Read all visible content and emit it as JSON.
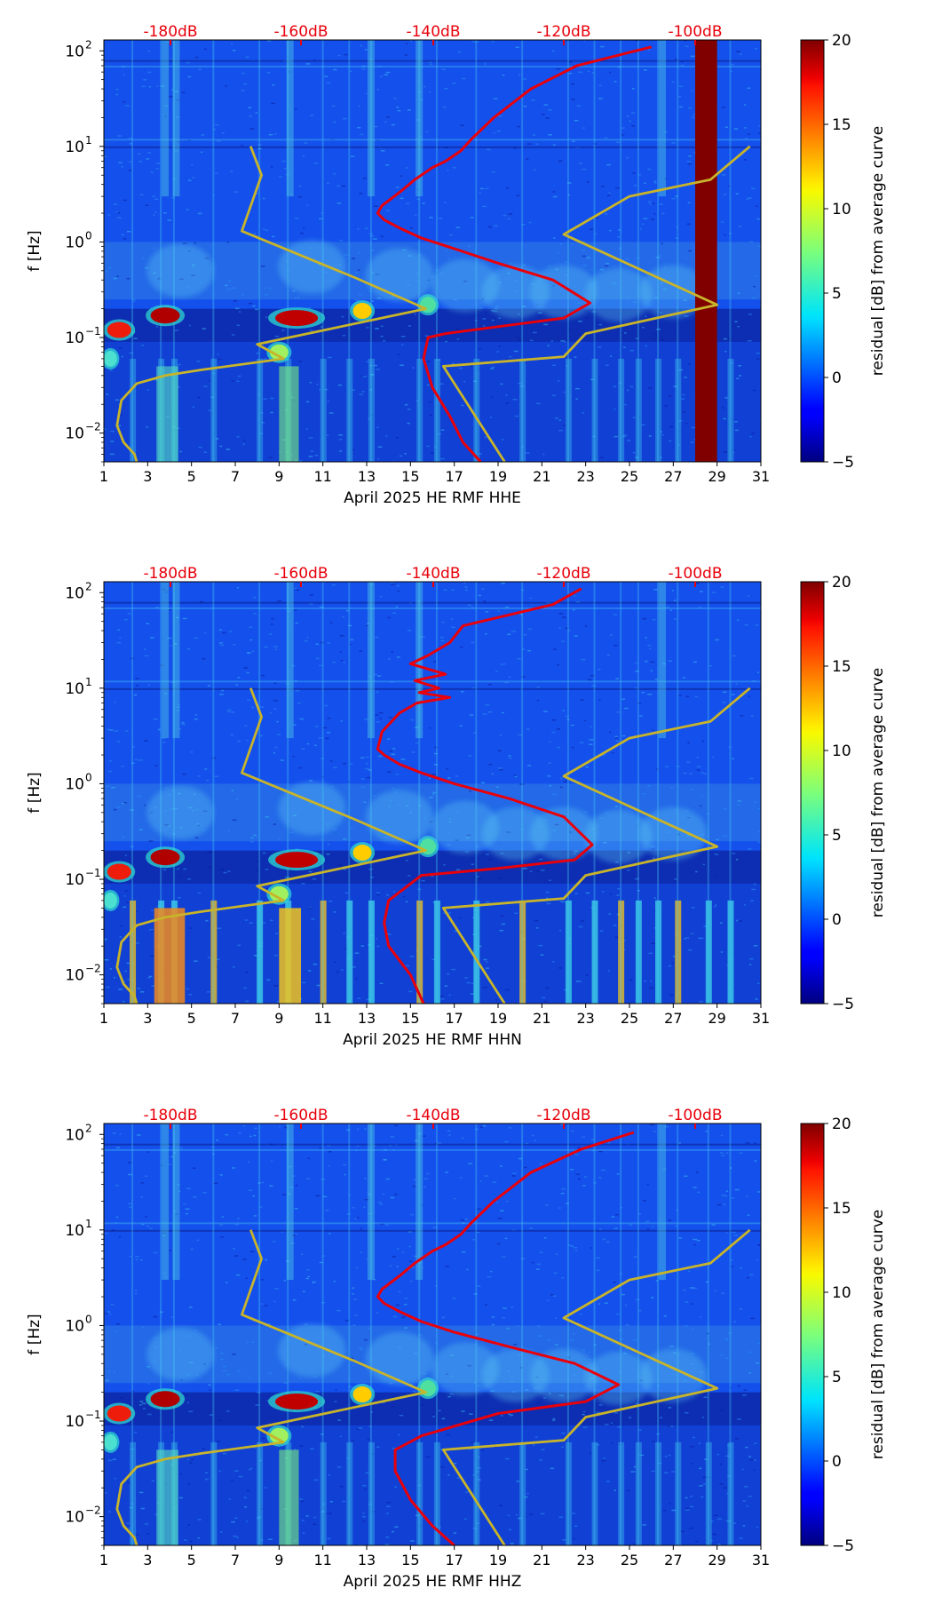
{
  "chart_data": [
    {
      "type": "heatmap",
      "title": "",
      "xlabel": "April 2025 HE RMF  HHE",
      "ylabel": "f [Hz]",
      "x_ticks": [
        "1",
        "3",
        "5",
        "7",
        "9",
        "11",
        "13",
        "15",
        "17",
        "19",
        "21",
        "23",
        "25",
        "27",
        "29",
        "31"
      ],
      "x_range": [
        1,
        31
      ],
      "y_ticks": [
        "10^-2",
        "10^-1",
        "10^0",
        "10^1",
        "10^2"
      ],
      "y_range": [
        0.005,
        130
      ],
      "y_scale": "log",
      "top_axis_ticks": [
        "-180dB",
        "-160dB",
        "-140dB",
        "-120dB",
        "-100dB"
      ],
      "top_axis_color": "#e8000b",
      "colorbar": {
        "label": "residual [dB] from average curve",
        "ticks": [
          "-5",
          "0",
          "5",
          "10",
          "15",
          "20"
        ],
        "range": [
          -5,
          20
        ],
        "colormap": "jet"
      },
      "highlight_bands": [
        {
          "x0": 28.0,
          "x1": 29.0,
          "color": "#800000"
        }
      ],
      "series": [
        {
          "color": "#e8000b",
          "x": [
            26.0,
            22.6,
            20.5,
            18.8,
            17.8,
            17.3,
            16.6,
            16.0,
            15.2,
            14.5,
            13.7,
            13.5,
            13.8,
            14.5,
            15.5,
            17.0,
            19.0,
            21.5,
            23.2,
            22.0,
            19.0,
            16.6,
            15.8,
            15.6,
            16.0,
            16.8,
            17.4,
            18.2
          ],
          "y": [
            110,
            70,
            40,
            20,
            12,
            9,
            7,
            6,
            4.5,
            3.3,
            2.4,
            2.0,
            1.7,
            1.4,
            1.1,
            0.85,
            0.6,
            0.4,
            0.23,
            0.16,
            0.13,
            0.11,
            0.1,
            0.06,
            0.03,
            0.015,
            0.008,
            0.005
          ]
        },
        {
          "color": "#c8b42a",
          "x": [
            7.7,
            8.2,
            7.3,
            12.5,
            15.7,
            8.0,
            9.2,
            5.5,
            3.8,
            2.5,
            1.8,
            1.6,
            1.9,
            2.4,
            2.5
          ],
          "y": [
            10,
            5.0,
            1.3,
            0.42,
            0.2,
            0.085,
            0.06,
            0.046,
            0.04,
            0.033,
            0.022,
            0.012,
            0.008,
            0.006,
            0.005
          ]
        },
        {
          "color": "#c8b42a",
          "x": [
            30.5,
            28.7,
            25.0,
            22.0,
            29.0,
            23.0,
            22.0,
            16.5,
            19.3
          ],
          "y": [
            10,
            4.5,
            3.0,
            1.2,
            0.22,
            0.11,
            0.063,
            0.05,
            0.005
          ]
        }
      ]
    },
    {
      "type": "heatmap",
      "title": "",
      "xlabel": "April 2025 HE RMF  HHN",
      "ylabel": "f [Hz]",
      "x_ticks": [
        "1",
        "3",
        "5",
        "7",
        "9",
        "11",
        "13",
        "15",
        "17",
        "19",
        "21",
        "23",
        "25",
        "27",
        "29",
        "31"
      ],
      "x_range": [
        1,
        31
      ],
      "y_ticks": [
        "10^-2",
        "10^-1",
        "10^0",
        "10^1",
        "10^2"
      ],
      "y_range": [
        0.005,
        130
      ],
      "y_scale": "log",
      "top_axis_ticks": [
        "-180dB",
        "-160dB",
        "-140dB",
        "-120dB",
        "-100dB"
      ],
      "top_axis_color": "#e8000b",
      "colorbar": {
        "label": "residual [dB] from average curve",
        "ticks": [
          "-5",
          "0",
          "5",
          "10",
          "15",
          "20"
        ],
        "range": [
          -5,
          20
        ],
        "colormap": "jet"
      },
      "highlight_bands": [],
      "series": [
        {
          "color": "#e8000b",
          "x": [
            22.8,
            21.5,
            17.4,
            16.8,
            15.8,
            15.0,
            16.6,
            15.2,
            16.3,
            15.4,
            16.8,
            15.3,
            14.5,
            13.7,
            13.5,
            13.8,
            14.5,
            15.5,
            17.0,
            19.5,
            22.0,
            23.3,
            22.5,
            19.0,
            15.5,
            14.0,
            13.8,
            14.0,
            15.0,
            15.6
          ],
          "y": [
            110,
            75,
            45,
            30,
            22,
            18,
            14,
            12,
            10,
            9,
            8,
            7,
            5.5,
            3.5,
            2.3,
            2.0,
            1.6,
            1.3,
            1.0,
            0.7,
            0.45,
            0.23,
            0.16,
            0.13,
            0.11,
            0.06,
            0.035,
            0.02,
            0.01,
            0.005
          ]
        },
        {
          "color": "#c8b42a",
          "x": [
            7.7,
            8.2,
            7.3,
            12.5,
            15.7,
            8.0,
            9.2,
            5.5,
            3.8,
            2.5,
            1.8,
            1.6,
            1.9,
            2.4,
            2.5
          ],
          "y": [
            10,
            5.0,
            1.3,
            0.42,
            0.2,
            0.085,
            0.06,
            0.046,
            0.04,
            0.033,
            0.022,
            0.012,
            0.008,
            0.006,
            0.005
          ]
        },
        {
          "color": "#c8b42a",
          "x": [
            30.5,
            28.7,
            25.0,
            22.0,
            29.0,
            23.0,
            22.0,
            16.5,
            19.3
          ],
          "y": [
            10,
            4.5,
            3.0,
            1.2,
            0.22,
            0.11,
            0.063,
            0.05,
            0.005
          ]
        }
      ]
    },
    {
      "type": "heatmap",
      "title": "",
      "xlabel": "April 2025 HE RMF  HHZ",
      "ylabel": "f [Hz]",
      "x_ticks": [
        "1",
        "3",
        "5",
        "7",
        "9",
        "11",
        "13",
        "15",
        "17",
        "19",
        "21",
        "23",
        "25",
        "27",
        "29",
        "31"
      ],
      "x_range": [
        1,
        31
      ],
      "y_ticks": [
        "10^-2",
        "10^-1",
        "10^0",
        "10^1",
        "10^2"
      ],
      "y_range": [
        0.005,
        130
      ],
      "y_scale": "log",
      "top_axis_ticks": [
        "-180dB",
        "-160dB",
        "-140dB",
        "-120dB",
        "-100dB"
      ],
      "top_axis_color": "#e8000b",
      "colorbar": {
        "label": "residual [dB] from average curve",
        "ticks": [
          "-5",
          "0",
          "5",
          "10",
          "15",
          "20"
        ],
        "range": [
          -5,
          20
        ],
        "colormap": "jet"
      },
      "highlight_bands": [],
      "series": [
        {
          "color": "#e8000b",
          "x": [
            25.2,
            22.8,
            20.5,
            18.8,
            17.8,
            17.3,
            16.6,
            16.0,
            15.2,
            14.5,
            13.7,
            13.5,
            13.8,
            14.5,
            15.5,
            17.0,
            19.5,
            22.5,
            24.5,
            23.0,
            19.0,
            15.5,
            14.3,
            14.3,
            15.0,
            16.0,
            17.0
          ],
          "y": [
            105,
            70,
            40,
            20,
            12,
            9,
            7,
            6,
            4.5,
            3.3,
            2.4,
            2.0,
            1.7,
            1.4,
            1.1,
            0.85,
            0.6,
            0.4,
            0.24,
            0.16,
            0.12,
            0.07,
            0.05,
            0.03,
            0.015,
            0.008,
            0.005
          ]
        },
        {
          "color": "#c8b42a",
          "x": [
            7.7,
            8.2,
            7.3,
            12.5,
            15.7,
            8.0,
            9.2,
            5.5,
            3.8,
            2.5,
            1.8,
            1.6,
            1.9,
            2.4,
            2.5
          ],
          "y": [
            10,
            5.0,
            1.3,
            0.42,
            0.2,
            0.085,
            0.06,
            0.046,
            0.04,
            0.033,
            0.022,
            0.012,
            0.008,
            0.006,
            0.005
          ]
        },
        {
          "color": "#c8b42a",
          "x": [
            30.5,
            28.7,
            25.0,
            22.0,
            29.0,
            23.0,
            22.0,
            16.5,
            19.3
          ],
          "y": [
            10,
            4.5,
            3.0,
            1.2,
            0.22,
            0.11,
            0.063,
            0.05,
            0.005
          ]
        }
      ]
    }
  ]
}
